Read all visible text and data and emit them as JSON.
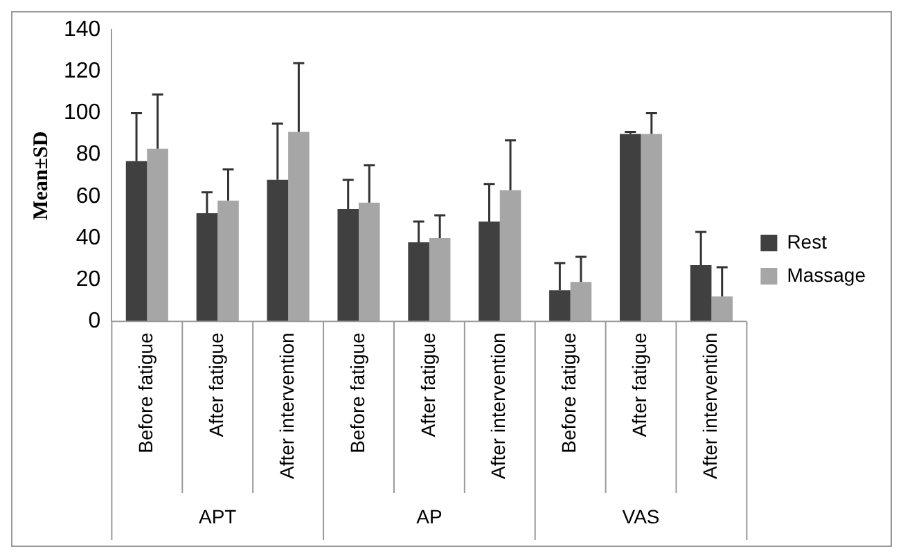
{
  "chart_data": {
    "type": "bar",
    "ylabel": "Mean±SD",
    "categories": [
      "Before fatigue",
      "After fatigue",
      "After intervention",
      "Before fatigue",
      "After fatigue",
      "After intervention",
      "Before fatigue",
      "After fatigue",
      "After intervention"
    ],
    "series": [
      {
        "name": "Rest",
        "color": "#404040",
        "values": [
          77,
          52,
          68,
          54,
          38,
          48,
          15,
          90,
          27
        ],
        "errors": [
          [
            77,
            100
          ],
          [
            52,
            62
          ],
          [
            68,
            95
          ],
          [
            54,
            68
          ],
          [
            38,
            48
          ],
          [
            48,
            66
          ],
          [
            15,
            28
          ],
          [
            90,
            91
          ],
          [
            27,
            43
          ]
        ]
      },
      {
        "name": "Massage",
        "color": "#a6a6a6",
        "values": [
          83,
          58,
          91,
          57,
          40,
          63,
          19,
          90,
          12
        ],
        "errors": [
          [
            83,
            109
          ],
          [
            58,
            73
          ],
          [
            91,
            124
          ],
          [
            57,
            75
          ],
          [
            40,
            51
          ],
          [
            63,
            87
          ],
          [
            19,
            31
          ],
          [
            90,
            100
          ],
          [
            12,
            26
          ]
        ]
      }
    ],
    "annotations": [
      "APT",
      "AP",
      "VAS"
    ],
    "ylim": [
      0,
      140
    ],
    "yticks": [
      0,
      20,
      40,
      60,
      80,
      100,
      120,
      140
    ],
    "grid": false,
    "legend": "right"
  }
}
